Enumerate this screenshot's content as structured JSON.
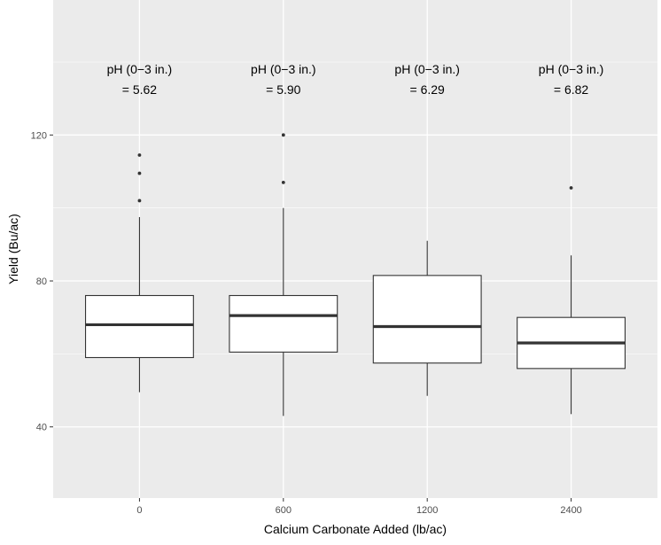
{
  "chart_data": {
    "type": "boxplot",
    "xlabel": "Calcium Carbonate Added (lb/ac)",
    "ylabel": "Yield (Bu/ac)",
    "ylim": [
      20.5,
      157
    ],
    "yticks": [
      40,
      80,
      120
    ],
    "categories": [
      "0",
      "600",
      "1200",
      "2400"
    ],
    "boxes": [
      {
        "category": "0",
        "whisker_low": 49.5,
        "q1": 59,
        "median": 68,
        "q3": 76,
        "whisker_high": 97.5,
        "outliers": [
          102,
          109.5,
          114.5
        ]
      },
      {
        "category": "600",
        "whisker_low": 43,
        "q1": 60.5,
        "median": 70.5,
        "q3": 76,
        "whisker_high": 100,
        "outliers": [
          107,
          120
        ]
      },
      {
        "category": "1200",
        "whisker_low": 48.5,
        "q1": 57.5,
        "median": 67.5,
        "q3": 81.5,
        "whisker_high": 91,
        "outliers": []
      },
      {
        "category": "2400",
        "whisker_low": 43.5,
        "q1": 56,
        "median": 63,
        "q3": 70,
        "whisker_high": 87,
        "outliers": [
          105.5
        ]
      }
    ],
    "annotations": [
      {
        "category": "0",
        "line1": "pH (0−3 in.)",
        "line2": "= 5.62"
      },
      {
        "category": "600",
        "line1": "pH (0−3 in.)",
        "line2": "= 5.90"
      },
      {
        "category": "1200",
        "line1": "pH (0−3 in.)",
        "line2": "= 6.29"
      },
      {
        "category": "2400",
        "line1": "pH (0−3 in.)",
        "line2": "= 6.82"
      }
    ],
    "grid": true,
    "colors": {
      "panel": "#ebebeb",
      "grid": "#ffffff",
      "box_fill": "#ffffff",
      "line": "#333333"
    }
  }
}
